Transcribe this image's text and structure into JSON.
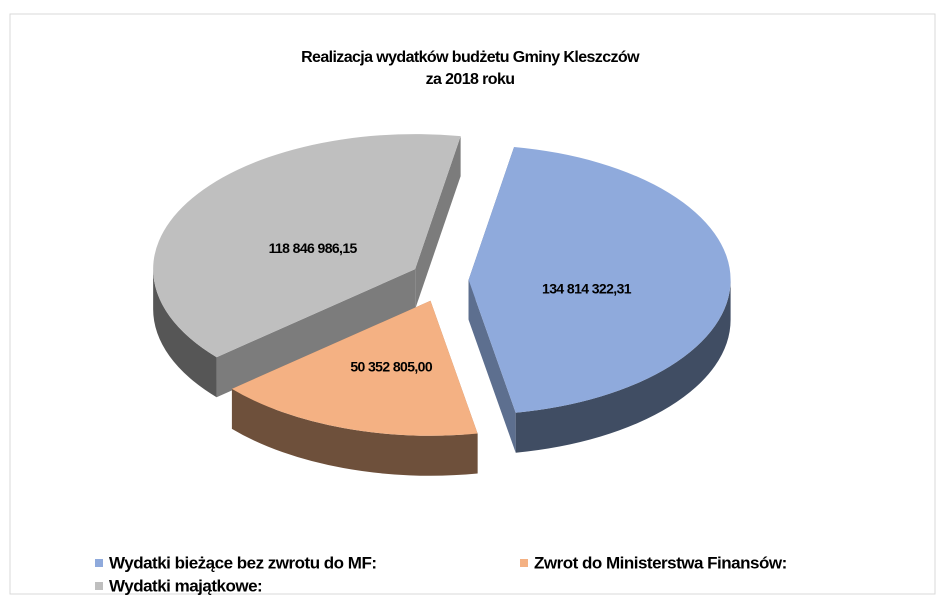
{
  "chart_data": {
    "type": "pie",
    "title": [
      "Realizacja wydatków budżetu Gminy Kleszczów",
      "za 2018 roku"
    ],
    "categories": [
      "Wydatki bieżące bez zwrotu do MF:",
      "Zwrot do Ministerstwa Finansów:",
      "Wydatki majątkowe:"
    ],
    "values": [
      134814322.31,
      50352805.0,
      118846986.15
    ],
    "value_labels": [
      "134 814 322,31",
      "50 352 805,00",
      "118 846 986,15"
    ],
    "colors": [
      "#8faadc",
      "#f4b183",
      "#bfbfbf"
    ],
    "legend": "bottom"
  }
}
